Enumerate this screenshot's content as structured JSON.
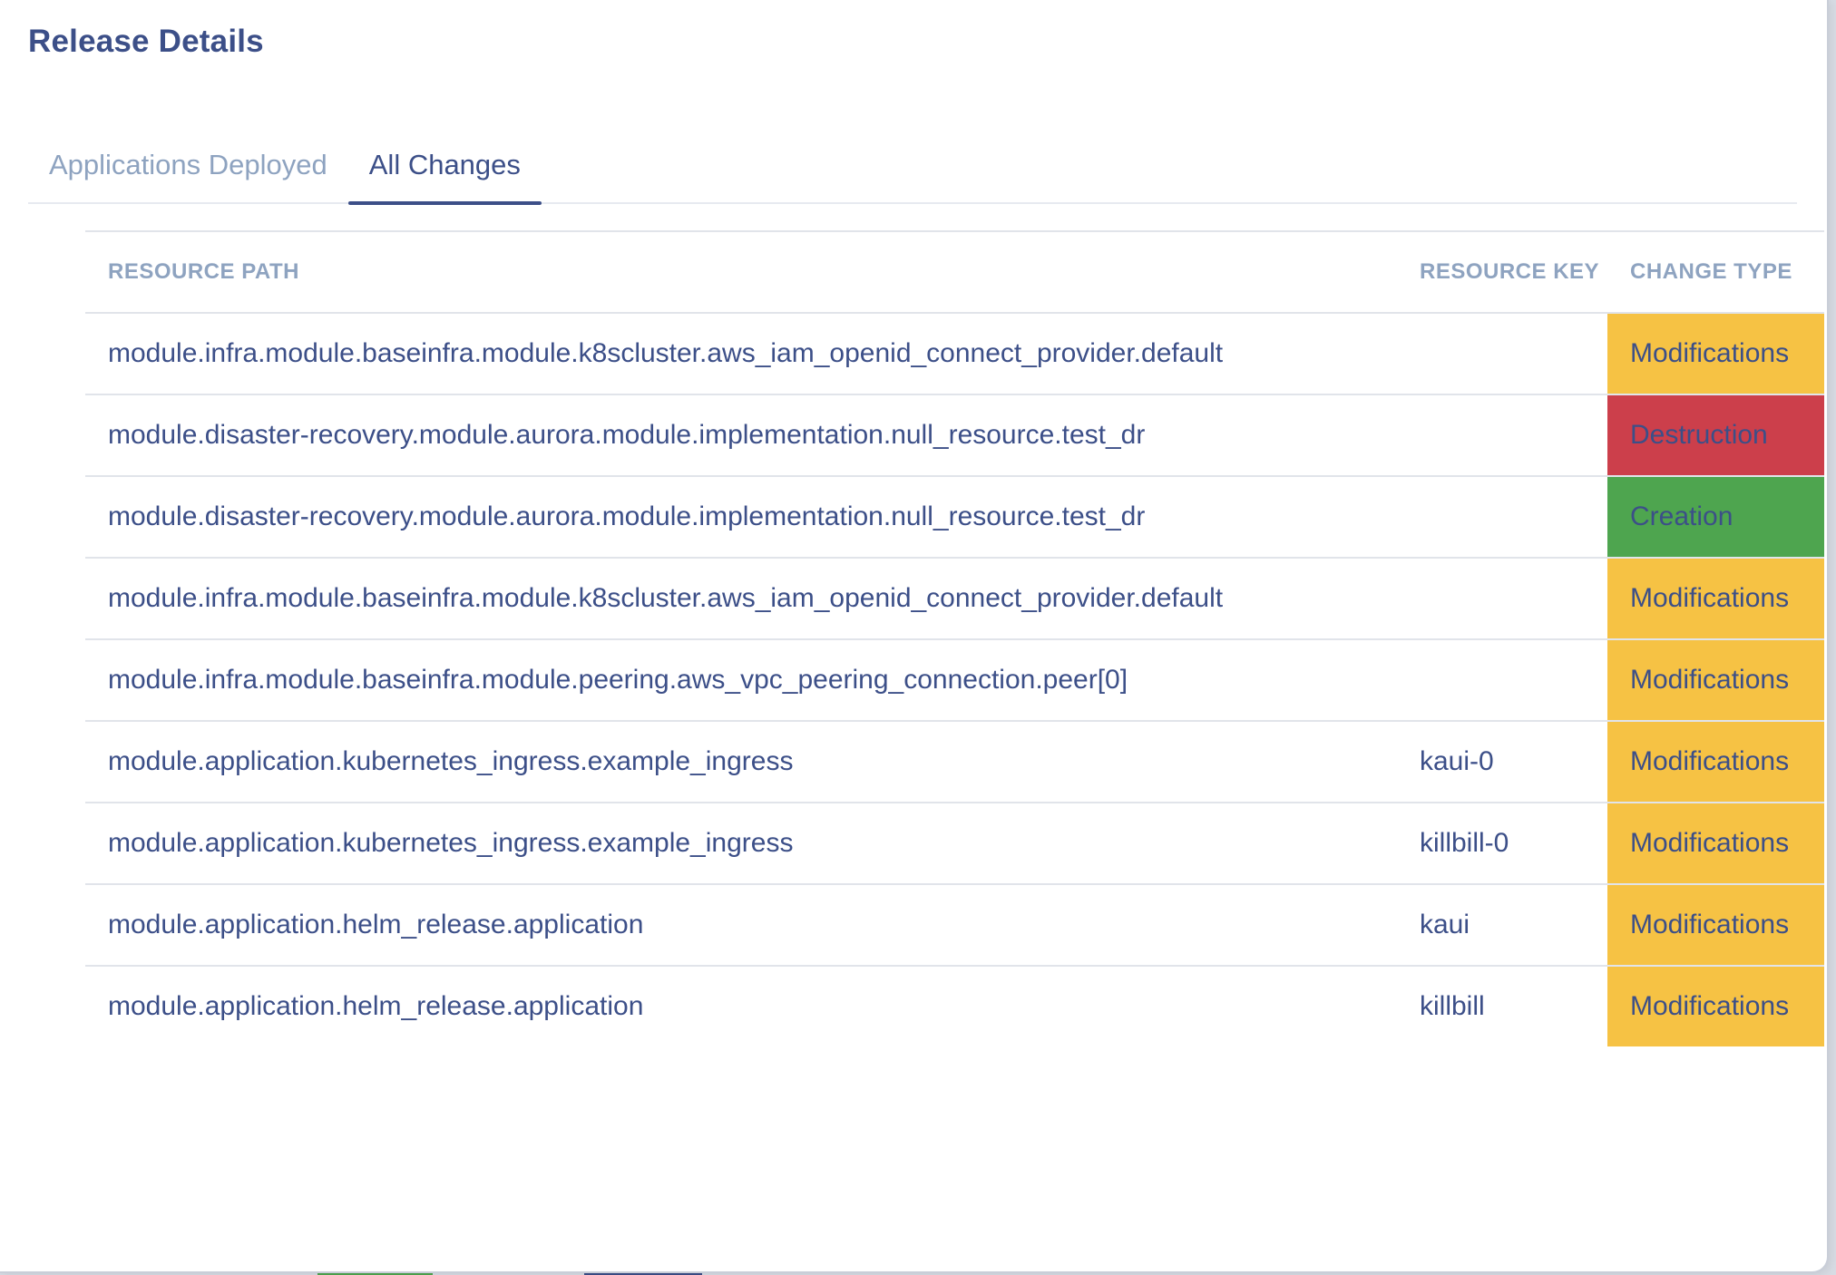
{
  "modal": {
    "title": "Release Details"
  },
  "tabs": [
    {
      "label": "Applications Deployed",
      "active": false
    },
    {
      "label": "All Changes",
      "active": true
    }
  ],
  "table": {
    "headers": {
      "resource_path": "RESOURCE PATH",
      "resource_key": "RESOURCE KEY",
      "change_type": "CHANGE TYPE"
    },
    "rows": [
      {
        "path": "module.infra.module.baseinfra.module.k8scluster.aws_iam_openid_connect_provider.default",
        "key": "",
        "change": "Modifications",
        "color": "#f6c244"
      },
      {
        "path": "module.disaster-recovery.module.aurora.module.implementation.null_resource.test_dr",
        "key": "",
        "change": "Destruction",
        "color": "#cc3f4b"
      },
      {
        "path": "module.disaster-recovery.module.aurora.module.implementation.null_resource.test_dr",
        "key": "",
        "change": "Creation",
        "color": "#4ea54f"
      },
      {
        "path": "module.infra.module.baseinfra.module.k8scluster.aws_iam_openid_connect_provider.default",
        "key": "",
        "change": "Modifications",
        "color": "#f6c244"
      },
      {
        "path": "module.infra.module.baseinfra.module.peering.aws_vpc_peering_connection.peer[0]",
        "key": "",
        "change": "Modifications",
        "color": "#f6c244"
      },
      {
        "path": "module.application.kubernetes_ingress.example_ingress",
        "key": "kaui-0",
        "change": "Modifications",
        "color": "#f6c244"
      },
      {
        "path": "module.application.kubernetes_ingress.example_ingress",
        "key": "killbill-0",
        "change": "Modifications",
        "color": "#f6c244"
      },
      {
        "path": "module.application.helm_release.application",
        "key": "kaui",
        "change": "Modifications",
        "color": "#f6c244"
      },
      {
        "path": "module.application.helm_release.application",
        "key": "killbill",
        "change": "Modifications",
        "color": "#f6c244"
      }
    ]
  },
  "colors": {
    "primary": "#3c4f88",
    "muted": "#8ea3c0",
    "modifications": "#f6c244",
    "destruction": "#cc3f4b",
    "creation": "#4ea54f"
  }
}
